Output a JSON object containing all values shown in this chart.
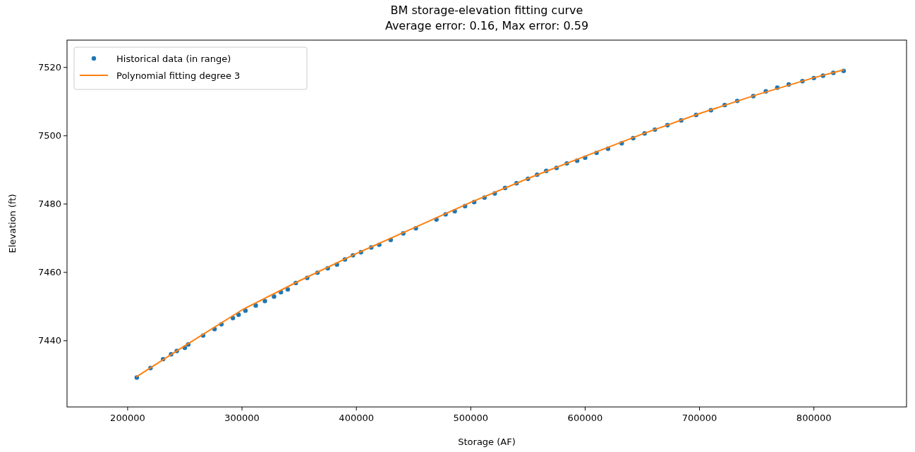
{
  "chart_data": {
    "type": "scatter",
    "title": "BM storage-elevation fitting curve\nAverage error: 0.16, Max error: 0.59",
    "xlabel": "Storage (AF)",
    "ylabel": "Elevation (ft)",
    "xlim": [
      147000,
      881000
    ],
    "ylim": [
      7420.6,
      7528
    ],
    "xticks": [
      200000,
      300000,
      400000,
      500000,
      600000,
      700000,
      800000
    ],
    "yticks": [
      7440,
      7460,
      7480,
      7500,
      7520
    ],
    "grid": false,
    "legend": "top left",
    "series": [
      {
        "name": "Historical data (in range)",
        "marker": "circle",
        "color": "#1f77b4",
        "x": [
          208000,
          220000,
          231000,
          238000,
          243000,
          250000,
          253000,
          266000,
          276000,
          282000,
          292000,
          297000,
          303000,
          312000,
          320000,
          328000,
          334000,
          340000,
          347000,
          357000,
          366000,
          375000,
          383000,
          390000,
          397000,
          404000,
          413000,
          420000,
          430000,
          441000,
          452000,
          470000,
          478000,
          486000,
          495000,
          503000,
          512000,
          521000,
          530000,
          540000,
          550000,
          558000,
          566000,
          575000,
          584000,
          593000,
          600000,
          610000,
          620000,
          632000,
          642000,
          652000,
          661000,
          672000,
          684000,
          697000,
          710000,
          722000,
          733000,
          747000,
          758000,
          768000,
          778000,
          790000,
          800000,
          808000,
          817000,
          826000
        ],
        "values": [
          7429.2,
          7432.0,
          7434.6,
          7436.0,
          7437.0,
          7437.9,
          7438.9,
          7441.5,
          7443.4,
          7444.8,
          7446.6,
          7447.6,
          7448.8,
          7450.3,
          7451.6,
          7452.9,
          7454.2,
          7455.0,
          7456.9,
          7458.4,
          7459.9,
          7461.2,
          7462.3,
          7463.8,
          7465.0,
          7465.9,
          7467.3,
          7468.1,
          7469.5,
          7471.4,
          7472.9,
          7475.5,
          7477.0,
          7477.9,
          7479.4,
          7480.6,
          7481.9,
          7483.1,
          7484.7,
          7486.1,
          7487.4,
          7488.6,
          7489.7,
          7490.6,
          7491.9,
          7492.7,
          7493.6,
          7495.0,
          7496.2,
          7497.8,
          7499.3,
          7500.7,
          7501.8,
          7503.1,
          7504.5,
          7506.1,
          7507.5,
          7509.0,
          7510.2,
          7511.6,
          7513.0,
          7514.1,
          7515.0,
          7516.0,
          7516.9,
          7517.6,
          7518.4,
          7519.0
        ]
      },
      {
        "name": "Polynomial fitting degree 3",
        "type": "line",
        "marker": "none",
        "line_style": "solid",
        "color": "#ff7f0e",
        "x": [
          208000,
          250000,
          300000,
          350000,
          400000,
          450000,
          500000,
          550000,
          600000,
          650000,
          700000,
          750000,
          800000,
          826000
        ],
        "values": [
          7429.5,
          7438.5,
          7449.0,
          7457.5,
          7465.5,
          7473.0,
          7480.5,
          7487.5,
          7494.0,
          7500.5,
          7506.5,
          7512.0,
          7517.0,
          7519.3
        ]
      }
    ]
  }
}
